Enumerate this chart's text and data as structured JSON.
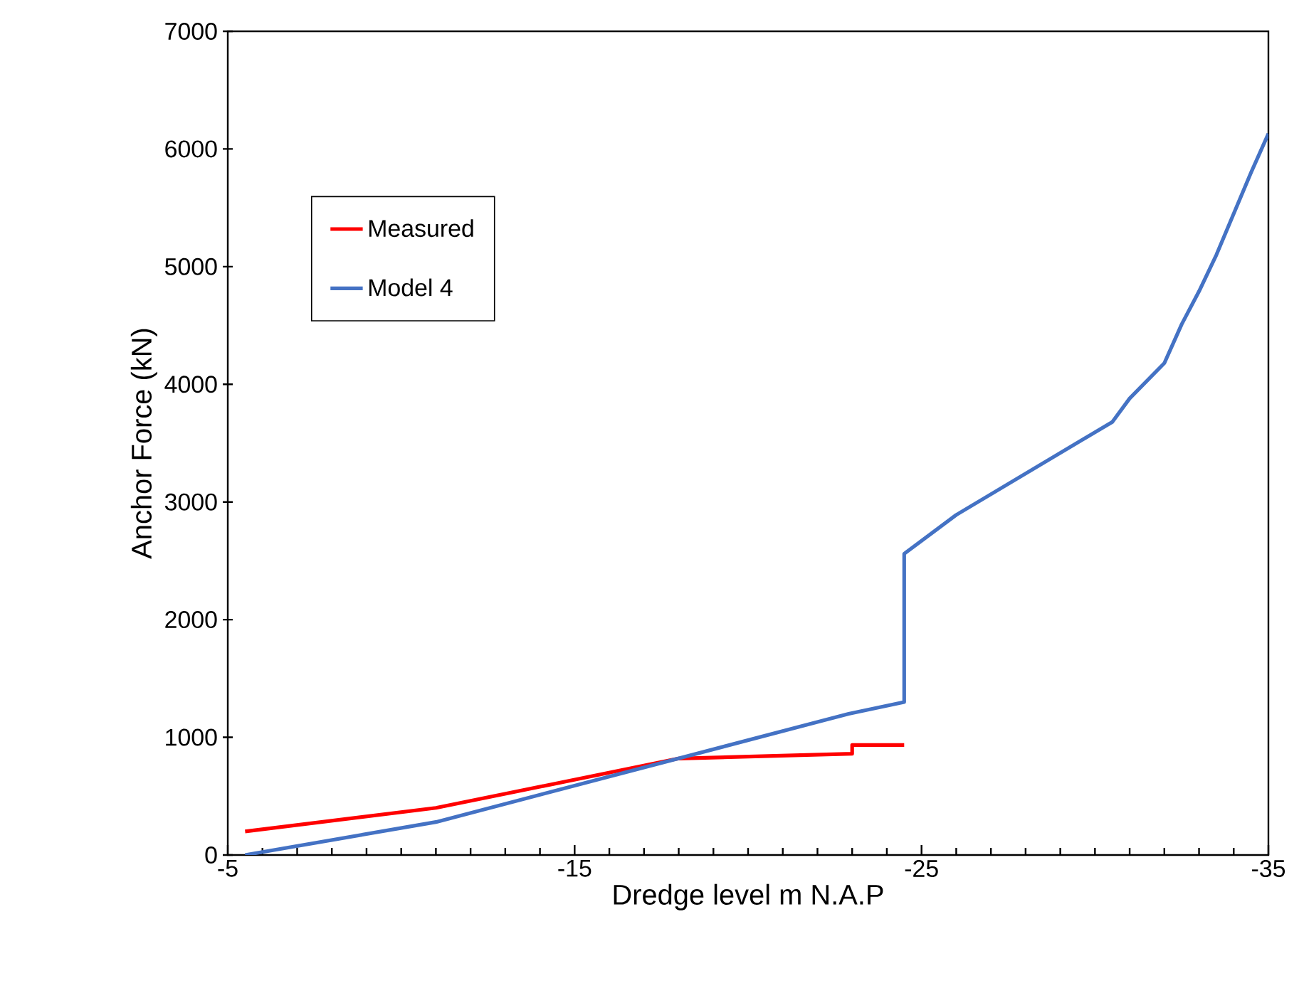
{
  "chart_data": {
    "type": "line",
    "xlabel": "Dredge level m N.A.P",
    "ylabel": "Anchor Force (kN)",
    "xlim": [
      -5,
      -35
    ],
    "xticks": [
      -5,
      -15,
      -25,
      -35
    ],
    "ylim": [
      0,
      7000
    ],
    "yticks": [
      0,
      1000,
      2000,
      3000,
      4000,
      5000,
      6000,
      7000
    ],
    "grid": false,
    "legend": "top left",
    "marker": "none",
    "line_style": "solid",
    "series": [
      {
        "name": "Measured",
        "color": "#ff0000",
        "x": [
          -5.5,
          -11,
          -18,
          -23,
          -23,
          -24.5
        ],
        "values": [
          200,
          400,
          820,
          860,
          935,
          935
        ]
      },
      {
        "name": "Model 4",
        "color": "#4472c4",
        "x": [
          -5.5,
          -11,
          -22.9,
          -24.5,
          -24.5,
          -26,
          -30.5,
          -31,
          -32,
          -32.5,
          -33,
          -33.5,
          -34.5,
          -35
        ],
        "values": [
          0,
          280,
          1200,
          1300,
          2560,
          2890,
          3680,
          3880,
          4180,
          4510,
          4790,
          5100,
          5800,
          6130
        ]
      }
    ]
  }
}
